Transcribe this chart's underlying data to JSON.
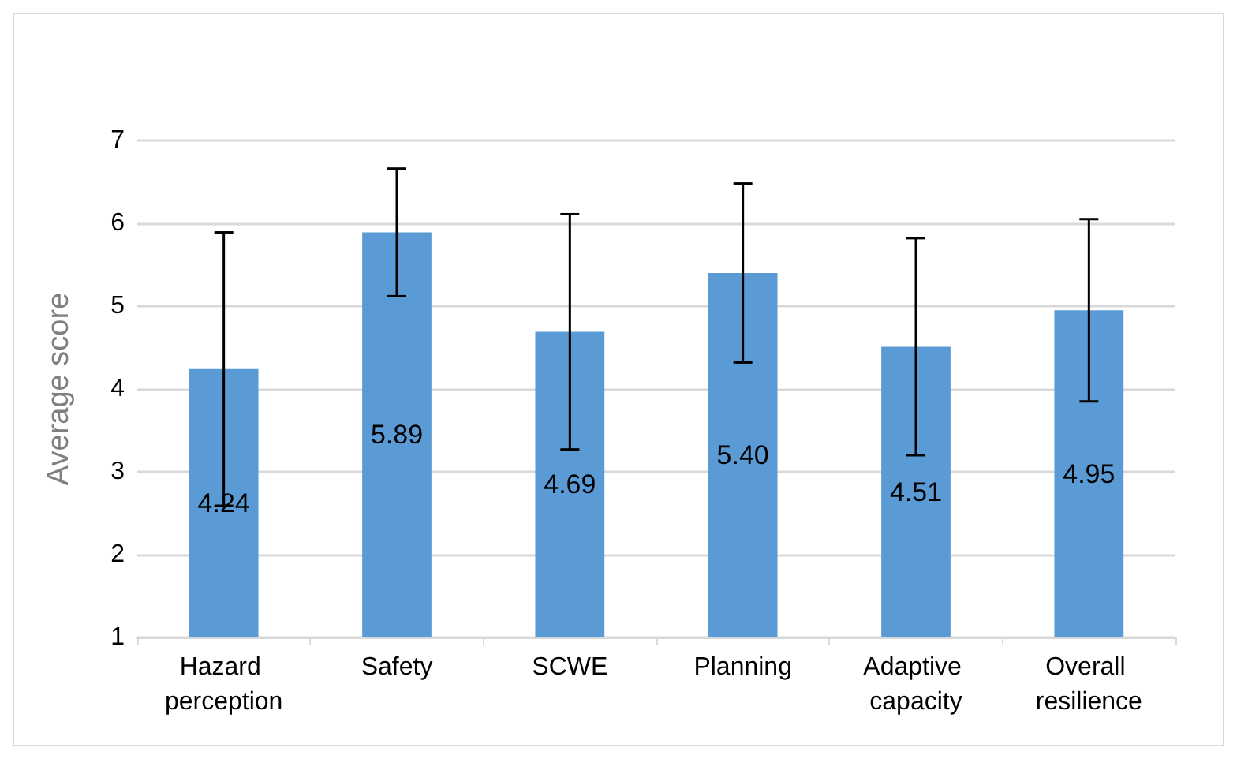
{
  "chart_data": {
    "type": "bar",
    "ylabel": "Average score",
    "categories": [
      "Hazard perception",
      "Safety",
      "SCWE",
      "Planning",
      "Adaptive capacity",
      "Overall resilience"
    ],
    "values": [
      4.24,
      5.89,
      4.69,
      5.4,
      4.51,
      4.95
    ],
    "value_labels": [
      "4.24",
      "5.89",
      "4.69",
      "5.40",
      "4.51",
      "4.95"
    ],
    "errors": [
      1.65,
      0.77,
      1.42,
      1.08,
      1.31,
      1.1
    ],
    "color": "#5b9bd5",
    "ylim": [
      1,
      7
    ],
    "yticks": [
      1,
      2,
      3,
      4,
      5,
      6,
      7
    ],
    "grid": "y"
  }
}
